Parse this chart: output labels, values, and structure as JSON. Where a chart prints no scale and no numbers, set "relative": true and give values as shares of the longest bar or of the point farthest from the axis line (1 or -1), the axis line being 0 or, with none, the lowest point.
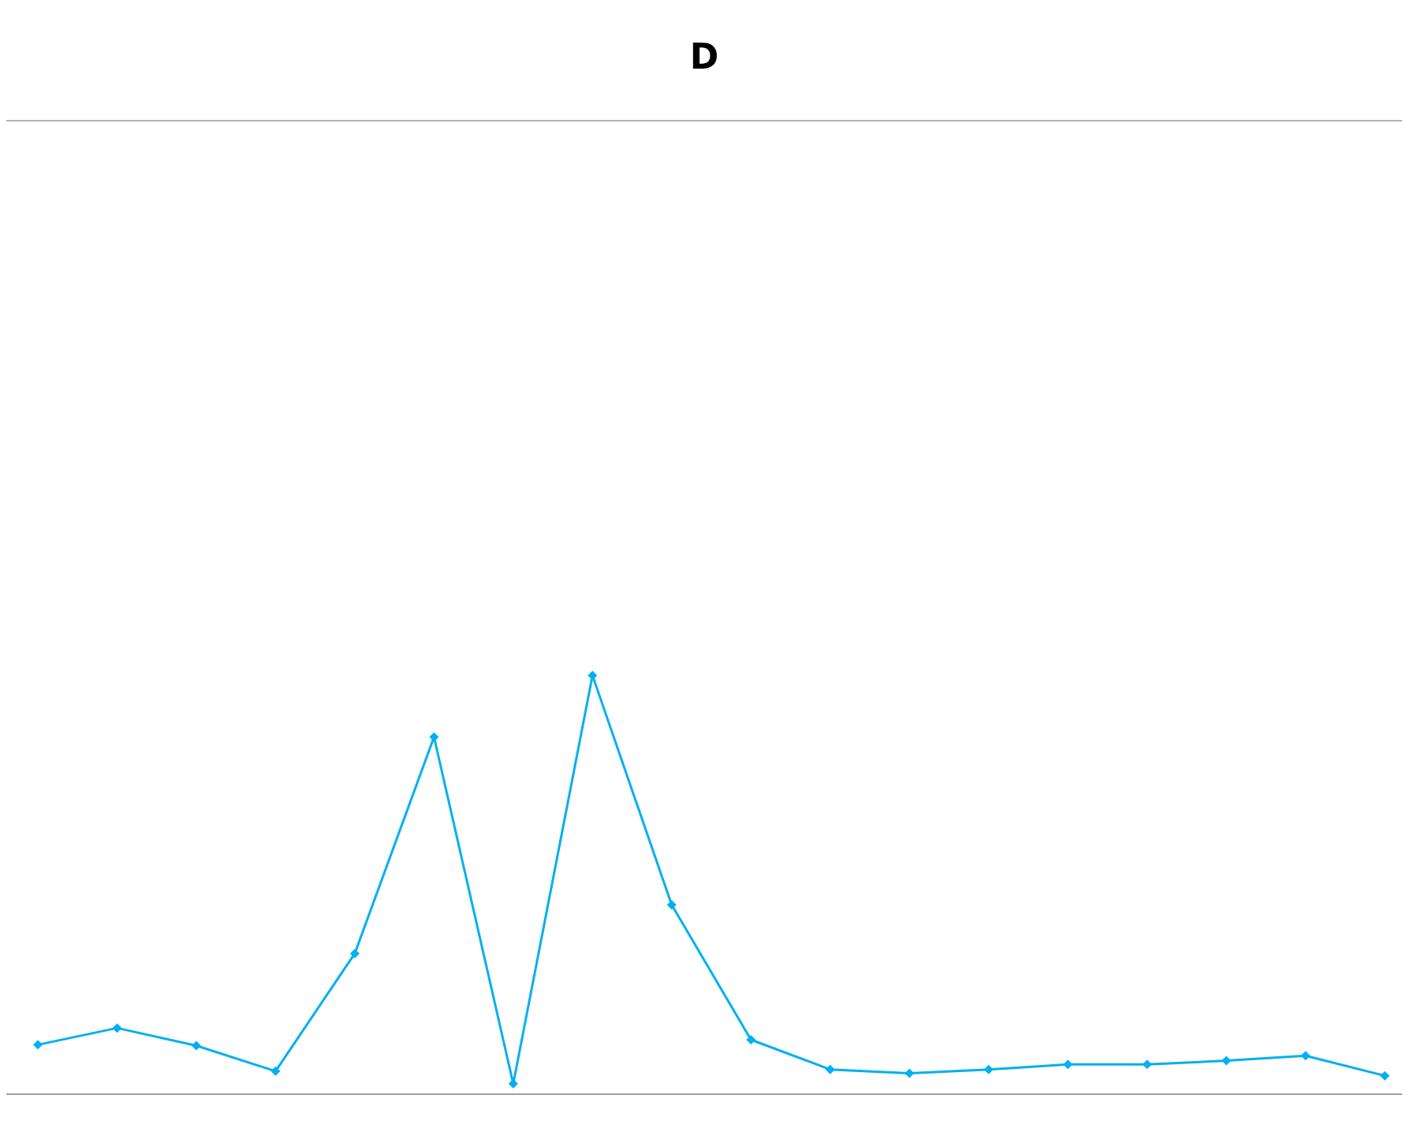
{
  "chart_data": {
    "type": "line",
    "title": "D",
    "relative": true,
    "categories": [
      null,
      null,
      null,
      null,
      null,
      null,
      null,
      null,
      null,
      null,
      null,
      null,
      null,
      null,
      null,
      null,
      null,
      null
    ],
    "series": [
      {
        "color": "#00b0f0",
        "values": [
          0.118,
          0.158,
          0.116,
          0.055,
          0.336,
          0.853,
          0.025,
          1,
          0.452,
          0.13,
          0.059,
          0.05,
          0.059,
          0.071,
          0.071,
          0.08,
          0.092,
          0.044
        ]
      }
    ],
    "marker": "diamond",
    "grid": "y",
    "tick_labels": false,
    "legend": false
  }
}
